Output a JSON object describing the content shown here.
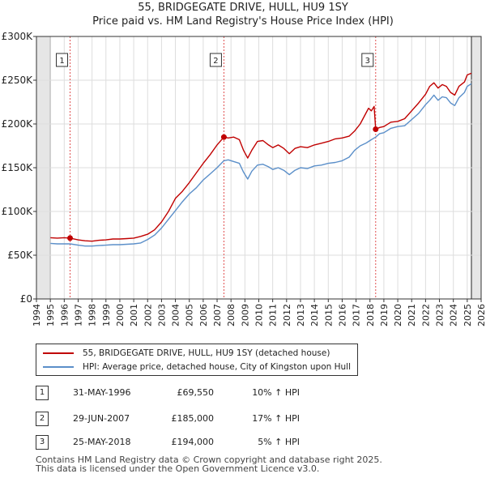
{
  "title": "55, BRIDGEGATE DRIVE, HULL, HU9 1SY",
  "subtitle": "Price paid vs. HM Land Registry's House Price Index (HPI)",
  "chart_data": {
    "type": "line",
    "x_range": [
      1994,
      2026
    ],
    "ylim": [
      0,
      300000
    ],
    "y_ticks": [
      0,
      50000,
      100000,
      150000,
      200000,
      250000,
      300000
    ],
    "y_tick_labels": [
      "£0",
      "£50K",
      "£100K",
      "£150K",
      "£200K",
      "£250K",
      "£300K"
    ],
    "x_ticks": [
      "1994",
      "1995",
      "1996",
      "1997",
      "1998",
      "1999",
      "2000",
      "2001",
      "2002",
      "2003",
      "2004",
      "2005",
      "2006",
      "2007",
      "2008",
      "2009",
      "2010",
      "2011",
      "2012",
      "2013",
      "2014",
      "2015",
      "2016",
      "2017",
      "2018",
      "2019",
      "2020",
      "2021",
      "2022",
      "2023",
      "2024",
      "2025",
      "2026"
    ],
    "data_start": 1995.0,
    "data_end": 2025.3,
    "series": [
      {
        "name": "55, BRIDGEGATE DRIVE, HULL, HU9 1SY (detached house)",
        "color": "#c00000",
        "points": [
          [
            1995.0,
            70000
          ],
          [
            1995.5,
            69500
          ],
          [
            1996.0,
            70000
          ],
          [
            1996.42,
            69550
          ],
          [
            1997.0,
            67500
          ],
          [
            1997.5,
            66500
          ],
          [
            1998.0,
            66000
          ],
          [
            1998.5,
            67000
          ],
          [
            1999.0,
            67500
          ],
          [
            1999.5,
            68500
          ],
          [
            2000.0,
            68500
          ],
          [
            2000.5,
            69000
          ],
          [
            2001.0,
            69500
          ],
          [
            2001.5,
            71500
          ],
          [
            2002.0,
            74000
          ],
          [
            2002.5,
            79000
          ],
          [
            2003.0,
            88000
          ],
          [
            2003.5,
            100000
          ],
          [
            2004.0,
            115000
          ],
          [
            2004.5,
            123000
          ],
          [
            2005.0,
            133000
          ],
          [
            2005.5,
            144000
          ],
          [
            2006.0,
            155000
          ],
          [
            2006.5,
            165000
          ],
          [
            2007.0,
            176000
          ],
          [
            2007.49,
            185000
          ],
          [
            2007.8,
            184000
          ],
          [
            2008.2,
            185000
          ],
          [
            2008.6,
            182000
          ],
          [
            2008.9,
            170000
          ],
          [
            2009.2,
            161000
          ],
          [
            2009.5,
            170000
          ],
          [
            2009.9,
            180000
          ],
          [
            2010.3,
            181000
          ],
          [
            2010.7,
            176000
          ],
          [
            2011.0,
            173000
          ],
          [
            2011.4,
            176000
          ],
          [
            2011.8,
            172000
          ],
          [
            2012.2,
            166000
          ],
          [
            2012.6,
            172000
          ],
          [
            2013.0,
            174000
          ],
          [
            2013.5,
            173000
          ],
          [
            2014.0,
            176000
          ],
          [
            2014.5,
            178000
          ],
          [
            2015.0,
            180000
          ],
          [
            2015.5,
            183000
          ],
          [
            2016.0,
            184000
          ],
          [
            2016.5,
            186000
          ],
          [
            2016.9,
            192000
          ],
          [
            2017.3,
            200000
          ],
          [
            2017.7,
            212000
          ],
          [
            2017.9,
            218000
          ],
          [
            2018.1,
            215000
          ],
          [
            2018.3,
            220000
          ],
          [
            2018.41,
            194000
          ],
          [
            2018.7,
            196000
          ],
          [
            2019.0,
            197000
          ],
          [
            2019.5,
            202000
          ],
          [
            2020.0,
            203000
          ],
          [
            2020.5,
            206000
          ],
          [
            2021.0,
            215000
          ],
          [
            2021.5,
            224000
          ],
          [
            2022.0,
            234000
          ],
          [
            2022.3,
            243000
          ],
          [
            2022.6,
            247000
          ],
          [
            2022.9,
            241000
          ],
          [
            2023.2,
            245000
          ],
          [
            2023.5,
            243000
          ],
          [
            2023.8,
            236000
          ],
          [
            2024.1,
            233000
          ],
          [
            2024.4,
            243000
          ],
          [
            2024.8,
            248000
          ],
          [
            2025.0,
            256000
          ],
          [
            2025.3,
            258000
          ]
        ]
      },
      {
        "name": "HPI: Average price, detached house, City of Kingston upon Hull",
        "color": "#5b8fc9",
        "points": [
          [
            1995.0,
            63500
          ],
          [
            1995.5,
            63000
          ],
          [
            1996.0,
            63000
          ],
          [
            1996.42,
            63000
          ],
          [
            1997.0,
            61500
          ],
          [
            1997.5,
            60500
          ],
          [
            1998.0,
            60500
          ],
          [
            1998.5,
            61000
          ],
          [
            1999.0,
            61500
          ],
          [
            1999.5,
            62000
          ],
          [
            2000.0,
            62000
          ],
          [
            2000.5,
            62500
          ],
          [
            2001.0,
            63000
          ],
          [
            2001.5,
            64000
          ],
          [
            2002.0,
            68000
          ],
          [
            2002.5,
            73000
          ],
          [
            2003.0,
            81000
          ],
          [
            2003.5,
            91000
          ],
          [
            2004.0,
            101000
          ],
          [
            2004.5,
            111000
          ],
          [
            2005.0,
            120000
          ],
          [
            2005.5,
            127000
          ],
          [
            2006.0,
            136000
          ],
          [
            2006.5,
            143000
          ],
          [
            2007.0,
            150000
          ],
          [
            2007.49,
            158000
          ],
          [
            2007.8,
            159000
          ],
          [
            2008.2,
            157000
          ],
          [
            2008.6,
            155000
          ],
          [
            2008.9,
            145000
          ],
          [
            2009.2,
            137000
          ],
          [
            2009.5,
            146000
          ],
          [
            2009.9,
            153000
          ],
          [
            2010.3,
            154000
          ],
          [
            2010.7,
            151000
          ],
          [
            2011.0,
            148000
          ],
          [
            2011.4,
            150000
          ],
          [
            2011.8,
            147000
          ],
          [
            2012.2,
            142000
          ],
          [
            2012.6,
            147000
          ],
          [
            2013.0,
            150000
          ],
          [
            2013.5,
            149000
          ],
          [
            2014.0,
            152000
          ],
          [
            2014.5,
            153000
          ],
          [
            2015.0,
            155000
          ],
          [
            2015.5,
            156000
          ],
          [
            2016.0,
            158000
          ],
          [
            2016.5,
            162000
          ],
          [
            2016.9,
            170000
          ],
          [
            2017.3,
            175000
          ],
          [
            2017.7,
            178000
          ],
          [
            2017.9,
            180000
          ],
          [
            2018.1,
            182000
          ],
          [
            2018.3,
            184000
          ],
          [
            2018.41,
            185000
          ],
          [
            2018.7,
            189000
          ],
          [
            2019.0,
            190000
          ],
          [
            2019.5,
            195000
          ],
          [
            2020.0,
            197000
          ],
          [
            2020.5,
            198000
          ],
          [
            2021.0,
            205000
          ],
          [
            2021.5,
            212000
          ],
          [
            2022.0,
            222000
          ],
          [
            2022.3,
            227000
          ],
          [
            2022.6,
            233000
          ],
          [
            2022.9,
            227000
          ],
          [
            2023.2,
            231000
          ],
          [
            2023.5,
            230000
          ],
          [
            2023.8,
            224000
          ],
          [
            2024.1,
            221000
          ],
          [
            2024.4,
            230000
          ],
          [
            2024.8,
            236000
          ],
          [
            2025.0,
            243000
          ],
          [
            2025.3,
            246000
          ]
        ]
      }
    ],
    "markers": [
      {
        "label": "1",
        "x": 1996.42,
        "y": 69550
      },
      {
        "label": "2",
        "x": 2007.49,
        "y": 185000
      },
      {
        "label": "3",
        "x": 2018.41,
        "y": 194000
      }
    ]
  },
  "legend": [
    {
      "label": "55, BRIDGEGATE DRIVE, HULL, HU9 1SY (detached house)",
      "color": "#c00000"
    },
    {
      "label": "HPI: Average price, detached house, City of Kingston upon Hull",
      "color": "#5b8fc9"
    }
  ],
  "transactions": [
    {
      "n": "1",
      "date": "31-MAY-1996",
      "price": "£69,550",
      "hpi": "10% ↑ HPI"
    },
    {
      "n": "2",
      "date": "29-JUN-2007",
      "price": "£185,000",
      "hpi": "17% ↑ HPI"
    },
    {
      "n": "3",
      "date": "25-MAY-2018",
      "price": "£194,000",
      "hpi": "5% ↑ HPI"
    }
  ],
  "footer": {
    "line1": "Contains HM Land Registry data © Crown copyright and database right 2025.",
    "line2": "This data is licensed under the Open Government Licence v3.0."
  }
}
